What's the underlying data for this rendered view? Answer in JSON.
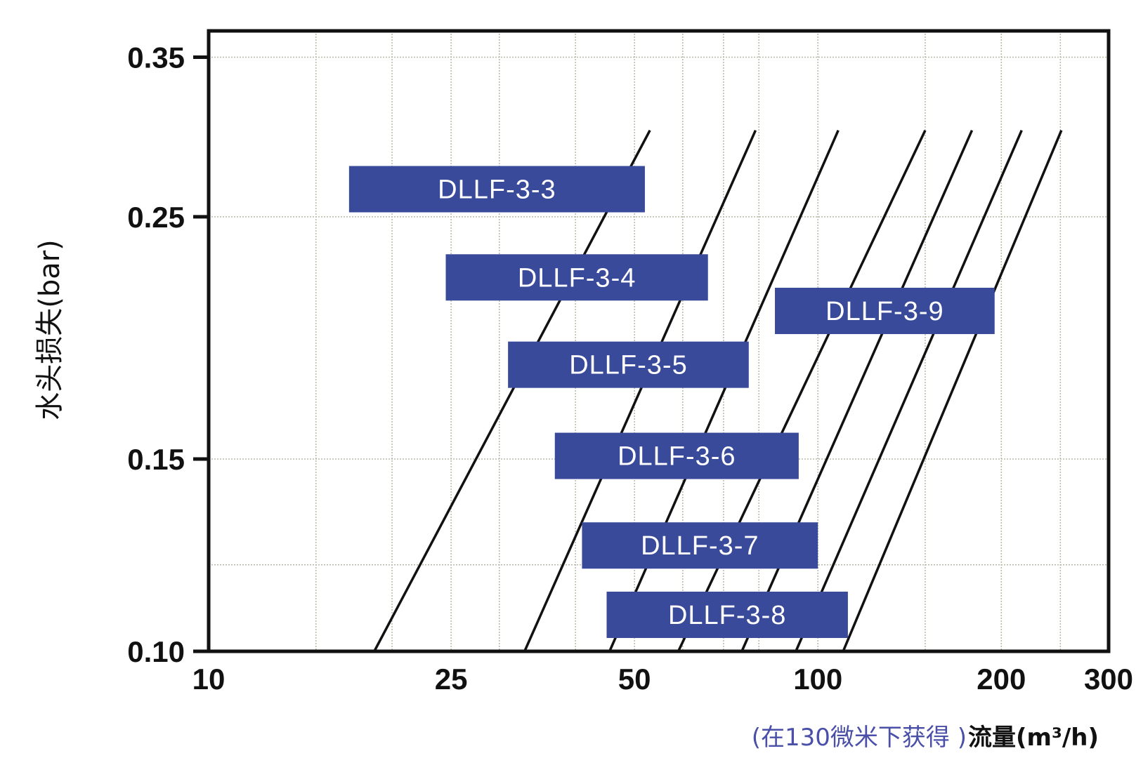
{
  "chart_data": {
    "type": "line",
    "ylabel": "水头损失(bar)",
    "x_note": "(在130微米下获得 )",
    "xlabel": "流量(m³/h)",
    "x_scale": "log",
    "x_ticks": [
      10,
      25,
      50,
      100,
      200,
      300
    ],
    "x_tick_labels": [
      "10",
      "25",
      "50",
      "100",
      "200",
      "300"
    ],
    "y_scale": "log",
    "y_ticks": [
      0.1,
      0.15,
      0.25,
      0.35
    ],
    "y_tick_labels": [
      "0.10",
      "0.15",
      "0.25",
      "0.35"
    ],
    "xlim": [
      10,
      300
    ],
    "ylim": [
      0.1,
      0.37
    ],
    "x_minor_grid": [
      15,
      20,
      30,
      40,
      60,
      70,
      80,
      150,
      250
    ],
    "y_minor_grid": [
      0.12
    ],
    "grid": true,
    "line_color": "#111111",
    "label_color": "#3a4a9a",
    "series": [
      {
        "name": "DLLF-3-3",
        "x": [
          18.7,
          53.0
        ],
        "y": [
          0.1,
          0.3
        ],
        "label_x_range": [
          17.0,
          52.0
        ],
        "label_y": 0.265
      },
      {
        "name": "DLLF-3-4",
        "x": [
          33.0,
          79.0
        ],
        "y": [
          0.1,
          0.3
        ],
        "label_x_range": [
          24.5,
          66.0
        ],
        "label_y": 0.22
      },
      {
        "name": "DLLF-3-5",
        "x": [
          45.5,
          108.0
        ],
        "y": [
          0.1,
          0.3
        ],
        "label_x_range": [
          31.0,
          77.0
        ],
        "label_y": 0.183
      },
      {
        "name": "DLLF-3-6",
        "x": [
          59.0,
          150.0
        ],
        "y": [
          0.1,
          0.3
        ],
        "label_x_range": [
          37.0,
          93.0
        ],
        "label_y": 0.151
      },
      {
        "name": "DLLF-3-7",
        "x": [
          75.0,
          179.0
        ],
        "y": [
          0.1,
          0.3
        ],
        "label_x_range": [
          41.0,
          100.0
        ],
        "label_y": 0.125
      },
      {
        "name": "DLLF-3-8",
        "x": [
          92.0,
          216.0
        ],
        "y": [
          0.1,
          0.3
        ],
        "label_x_range": [
          45.0,
          112.0
        ],
        "label_y": 0.108
      },
      {
        "name": "DLLF-3-9",
        "x": [
          110.0,
          251.0
        ],
        "y": [
          0.1,
          0.3
        ],
        "label_x_range": [
          85.0,
          195.0
        ],
        "label_y": 0.205
      }
    ]
  }
}
